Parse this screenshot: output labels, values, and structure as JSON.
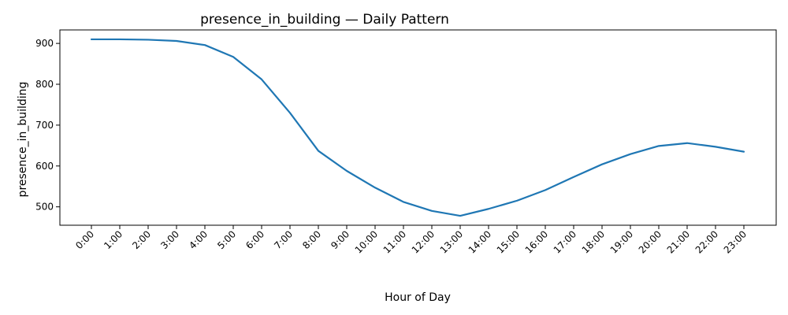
{
  "chart_data": {
    "type": "line",
    "title": "presence_in_building — Daily Pattern",
    "xlabel": "Hour of Day",
    "ylabel": "presence_in_building",
    "categories": [
      "0:00",
      "1:00",
      "2:00",
      "3:00",
      "4:00",
      "5:00",
      "6:00",
      "7:00",
      "8:00",
      "9:00",
      "10:00",
      "11:00",
      "12:00",
      "13:00",
      "14:00",
      "15:00",
      "16:00",
      "17:00",
      "18:00",
      "19:00",
      "20:00",
      "21:00",
      "22:00",
      "23:00"
    ],
    "series": [
      {
        "values": [
          910,
          910,
          909,
          906,
          896,
          867,
          812,
          730,
          637,
          588,
          547,
          512,
          490,
          478,
          495,
          515,
          541,
          573,
          604,
          629,
          649,
          656,
          647,
          635
        ],
        "color": "#1f77b4"
      }
    ],
    "ylim": [
      455,
      933
    ],
    "yticks": [
      500,
      600,
      700,
      800,
      900
    ],
    "grid": false,
    "legend": "none"
  }
}
